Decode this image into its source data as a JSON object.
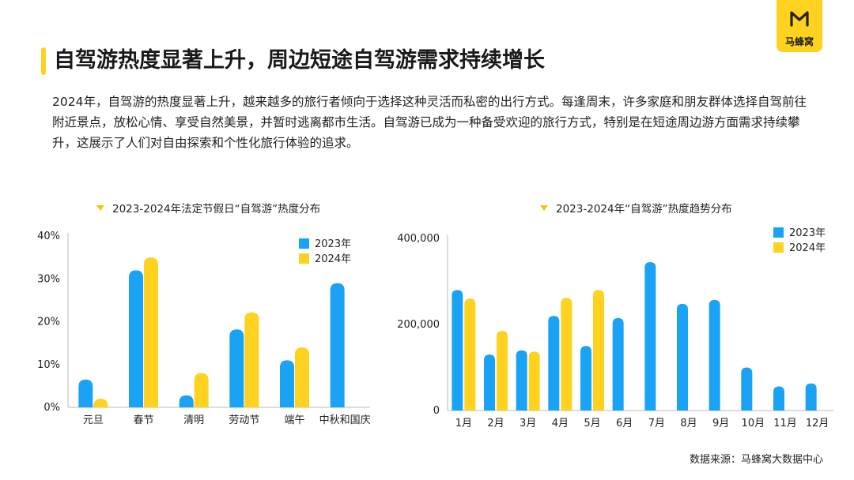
{
  "brand": {
    "name": "马蜂窝",
    "color": "#FFD21F"
  },
  "title": "自驾游热度显著上升，周边短途自驾游需求持续增长",
  "intro": "2024年，自驾游的热度显著上升，越来越多的旅行者倾向于选择这种灵活而私密的出行方式。每逢周末，许多家庭和朋友群体选择自驾前往附近景点，放松心情、享受自然美景，并暂时逃离都市生活。自驾游已成为一种备受欢迎的旅行方式，特别是在短途周边游方面需求持续攀升，这展示了人们对自由探索和个性化旅行体验的追求。",
  "source": "数据来源：马蜂窝大数据中心",
  "colors": {
    "series_2023": "#1AA3F5",
    "series_2024": "#FFD21F",
    "accent": "#F7C600"
  },
  "chart_data": [
    {
      "type": "bar",
      "title": "2023-2024年法定节假日“自驾游”热度分布",
      "categories": [
        "元旦",
        "春节",
        "清明",
        "劳动节",
        "端午",
        "中秋和国庆"
      ],
      "series": [
        {
          "name": "2023年",
          "values": [
            6.5,
            32,
            2.8,
            18.2,
            11,
            29
          ]
        },
        {
          "name": "2024年",
          "values": [
            2,
            35,
            8,
            22.2,
            14,
            null
          ]
        }
      ],
      "yticks": [
        "0%",
        "10%",
        "20%",
        "30%",
        "40%"
      ],
      "ylim": [
        0,
        40
      ],
      "legend": "top-right",
      "xlabel": "",
      "ylabel": ""
    },
    {
      "type": "bar",
      "title": "2023-2024年“自驾游”热度趋势分布",
      "categories": [
        "1月",
        "2月",
        "3月",
        "4月",
        "5月",
        "6月",
        "7月",
        "8月",
        "9月",
        "10月",
        "11月",
        "12月"
      ],
      "series": [
        {
          "name": "2023年",
          "values": [
            280000,
            130000,
            140000,
            220000,
            150000,
            215000,
            345000,
            248000,
            257000,
            100000,
            56000,
            63000
          ]
        },
        {
          "name": "2024年",
          "values": [
            260000,
            185000,
            137000,
            262000,
            280000,
            null,
            null,
            null,
            null,
            null,
            null,
            null
          ]
        }
      ],
      "yticks": [
        "0",
        "200,000",
        "400,000"
      ],
      "ylim": [
        0,
        400000
      ],
      "legend": "top-right",
      "xlabel": "",
      "ylabel": ""
    }
  ]
}
